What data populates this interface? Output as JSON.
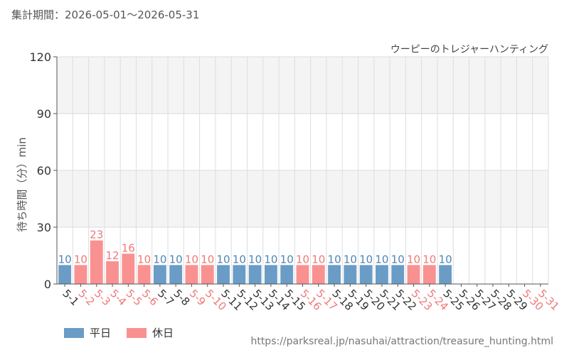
{
  "header": {
    "period_label": "集計期間：",
    "period_value": "2026-05-01～2026-05-31"
  },
  "legend": {
    "weekday_label": "平日",
    "holiday_label": "休日"
  },
  "source_url": "https://parksreal.jp/nasuhai/attraction/treasure_hunting.html",
  "colors": {
    "weekday": "#6a9cc6",
    "holiday": "#f99191",
    "weekday_text": "#4f86b5",
    "holiday_text": "#f07878",
    "band": "#f4f4f4",
    "grid": "#dddddd",
    "axis": "#555555"
  },
  "chart_data": {
    "type": "bar",
    "title": "ウーピーのトレジャーハンティング",
    "xlabel": "",
    "ylabel": "待ち時間（分）min",
    "ylim": [
      0,
      120
    ],
    "yticks": [
      0,
      30,
      60,
      90,
      120
    ],
    "grid": true,
    "categories": [
      "5-1",
      "5-2",
      "5-3",
      "5-4",
      "5-5",
      "5-6",
      "5-7",
      "5-8",
      "5-9",
      "5-10",
      "5-11",
      "5-12",
      "5-13",
      "5-14",
      "5-15",
      "5-16",
      "5-17",
      "5-18",
      "5-19",
      "5-20",
      "5-21",
      "5-22",
      "5-23",
      "5-24",
      "5-25",
      "5-26",
      "5-27",
      "5-28",
      "5-29",
      "5-30",
      "5-31"
    ],
    "values": [
      10,
      10,
      23,
      12,
      16,
      10,
      10,
      10,
      10,
      10,
      10,
      10,
      10,
      10,
      10,
      10,
      10,
      10,
      10,
      10,
      10,
      10,
      10,
      10,
      10,
      null,
      null,
      null,
      null,
      null,
      null
    ],
    "day_type": [
      "weekday",
      "holiday",
      "holiday",
      "holiday",
      "holiday",
      "holiday",
      "weekday",
      "weekday",
      "holiday",
      "holiday",
      "weekday",
      "weekday",
      "weekday",
      "weekday",
      "weekday",
      "holiday",
      "holiday",
      "weekday",
      "weekday",
      "weekday",
      "weekday",
      "weekday",
      "holiday",
      "holiday",
      "weekday",
      "weekday",
      "weekday",
      "weekday",
      "weekday",
      "holiday",
      "holiday"
    ],
    "series": [
      {
        "name": "平日",
        "color": "#6a9cc6"
      },
      {
        "name": "休日",
        "color": "#f99191"
      }
    ]
  }
}
